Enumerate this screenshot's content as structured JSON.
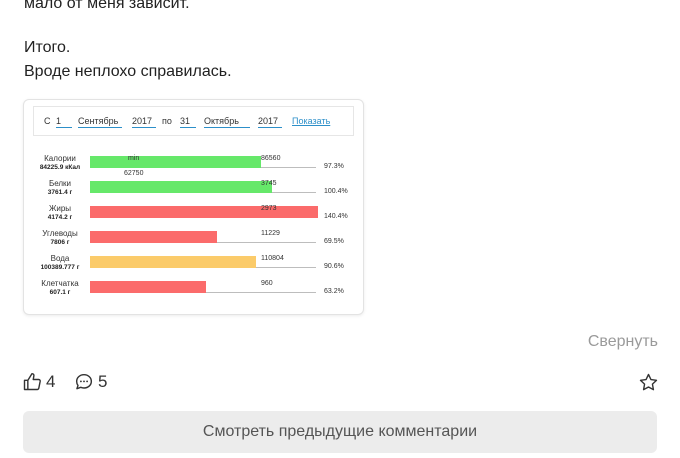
{
  "post": {
    "text_top": "мало от меня зависит.",
    "summary_title": "Итого.",
    "summary_text": "Вроде неплохо справилась."
  },
  "report": {
    "from_label": "С",
    "from_day": "1",
    "from_month": "Сентябрь",
    "from_year": "2017",
    "to_label": "по",
    "to_day": "31",
    "to_month": "Октябрь",
    "to_year": "2017",
    "show_link": "Показать",
    "min_label": "min",
    "min_value": "62750",
    "colors": {
      "green": "#66e86a",
      "red": "#fb6b6b",
      "orange": "#fbcb6a"
    },
    "rows": [
      {
        "name": "Калории",
        "amount": "84225.9 кКал",
        "fill": 0.749,
        "color": "green",
        "target": "86560",
        "pct": "97.3%"
      },
      {
        "name": "Белки",
        "amount": "3761.4 г",
        "fill": 0.797,
        "color": "green",
        "target": "3745",
        "pct": "100.4%"
      },
      {
        "name": "Жиры",
        "amount": "4174.2 г",
        "fill": 1.0,
        "color": "red",
        "target": "2973",
        "pct": "140.4%"
      },
      {
        "name": "Углеводы",
        "amount": "7806 г",
        "fill": 0.555,
        "color": "red",
        "target": "11229",
        "pct": "69.5%"
      },
      {
        "name": "Вода",
        "amount": "100389.777 г",
        "fill": 0.727,
        "color": "orange",
        "target": "110804",
        "pct": "90.6%"
      },
      {
        "name": "Клетчатка",
        "amount": "607.1 г",
        "fill": 0.507,
        "color": "red",
        "target": "960",
        "pct": "63.2%"
      }
    ]
  },
  "collapse_label": "Свернуть",
  "actions": {
    "likes": "4",
    "comments": "5"
  },
  "prev_comments_label": "Смотреть предыдущие комментарии"
}
